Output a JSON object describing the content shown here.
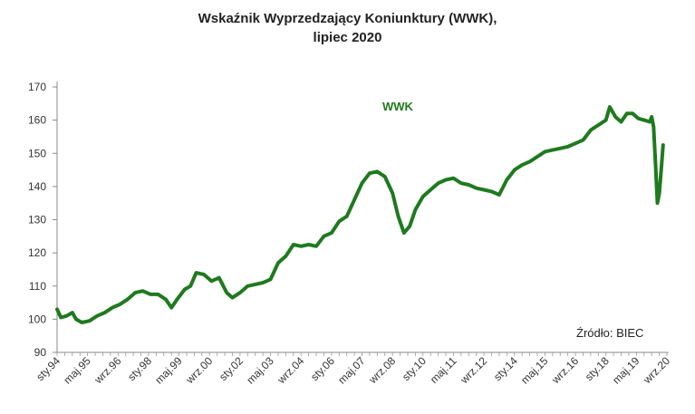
{
  "chart_data": {
    "type": "line",
    "title_line1": "Wskaźnik Wyprzedzający Koniunktury (WWK),",
    "title_line2": "lipiec 2020",
    "series_label": "WWK",
    "source": "Źródło: BIEC",
    "ylim": [
      90,
      170
    ],
    "y_ticks": [
      "90",
      "100",
      "110",
      "120",
      "130",
      "140",
      "150",
      "160",
      "170"
    ],
    "x_range": [
      "1994-01",
      "2020-09"
    ],
    "x_ticks": [
      {
        "label": "sty.94",
        "date": "1994-01"
      },
      {
        "label": "maj.95",
        "date": "1995-05"
      },
      {
        "label": "wrz.96",
        "date": "1996-09"
      },
      {
        "label": "sty.98",
        "date": "1998-01"
      },
      {
        "label": "maj.99",
        "date": "1999-05"
      },
      {
        "label": "wrz.00",
        "date": "2000-09"
      },
      {
        "label": "sty.02",
        "date": "2002-01"
      },
      {
        "label": "maj.03",
        "date": "2003-05"
      },
      {
        "label": "wrz.04",
        "date": "2004-09"
      },
      {
        "label": "sty.06",
        "date": "2006-01"
      },
      {
        "label": "maj.07",
        "date": "2007-05"
      },
      {
        "label": "wrz.08",
        "date": "2008-09"
      },
      {
        "label": "sty.10",
        "date": "2010-01"
      },
      {
        "label": "maj.11",
        "date": "2011-05"
      },
      {
        "label": "wrz.12",
        "date": "2012-09"
      },
      {
        "label": "sty.14",
        "date": "2014-01"
      },
      {
        "label": "maj.15",
        "date": "2015-05"
      },
      {
        "label": "wrz.16",
        "date": "2016-09"
      },
      {
        "label": "sty.18",
        "date": "2018-01"
      },
      {
        "label": "maj.19",
        "date": "2019-05"
      },
      {
        "label": "wrz.20",
        "date": "2020-09"
      }
    ],
    "line_color": "#1e7a1e",
    "grid": false,
    "points": [
      {
        "date": "1994-01",
        "value": 103
      },
      {
        "date": "1994-03",
        "value": 100.5
      },
      {
        "date": "1994-06",
        "value": 101
      },
      {
        "date": "1994-09",
        "value": 102
      },
      {
        "date": "1994-11",
        "value": 100
      },
      {
        "date": "1995-02",
        "value": 99
      },
      {
        "date": "1995-06",
        "value": 99.5
      },
      {
        "date": "1995-10",
        "value": 101
      },
      {
        "date": "1996-02",
        "value": 102
      },
      {
        "date": "1996-06",
        "value": 103.5
      },
      {
        "date": "1996-10",
        "value": 104.5
      },
      {
        "date": "1997-02",
        "value": 106
      },
      {
        "date": "1997-06",
        "value": 108
      },
      {
        "date": "1997-10",
        "value": 108.5
      },
      {
        "date": "1998-02",
        "value": 107.5
      },
      {
        "date": "1998-06",
        "value": 107.5
      },
      {
        "date": "1998-10",
        "value": 106
      },
      {
        "date": "1999-01",
        "value": 103.5
      },
      {
        "date": "1999-04",
        "value": 106
      },
      {
        "date": "1999-08",
        "value": 109
      },
      {
        "date": "1999-11",
        "value": 110
      },
      {
        "date": "2000-02",
        "value": 114
      },
      {
        "date": "2000-06",
        "value": 113.5
      },
      {
        "date": "2000-10",
        "value": 111.5
      },
      {
        "date": "2001-02",
        "value": 112.5
      },
      {
        "date": "2001-06",
        "value": 108
      },
      {
        "date": "2001-09",
        "value": 106.5
      },
      {
        "date": "2002-01",
        "value": 108
      },
      {
        "date": "2002-05",
        "value": 110
      },
      {
        "date": "2002-09",
        "value": 110.5
      },
      {
        "date": "2003-01",
        "value": 111
      },
      {
        "date": "2003-05",
        "value": 112
      },
      {
        "date": "2003-09",
        "value": 117
      },
      {
        "date": "2004-01",
        "value": 119
      },
      {
        "date": "2004-05",
        "value": 122.5
      },
      {
        "date": "2004-09",
        "value": 122
      },
      {
        "date": "2005-01",
        "value": 122.5
      },
      {
        "date": "2005-05",
        "value": 122
      },
      {
        "date": "2005-09",
        "value": 125
      },
      {
        "date": "2006-01",
        "value": 126
      },
      {
        "date": "2006-05",
        "value": 129.5
      },
      {
        "date": "2006-09",
        "value": 131
      },
      {
        "date": "2007-01",
        "value": 136
      },
      {
        "date": "2007-05",
        "value": 141
      },
      {
        "date": "2007-09",
        "value": 144
      },
      {
        "date": "2008-01",
        "value": 144.5
      },
      {
        "date": "2008-05",
        "value": 143
      },
      {
        "date": "2008-09",
        "value": 138
      },
      {
        "date": "2008-12",
        "value": 131
      },
      {
        "date": "2009-03",
        "value": 126
      },
      {
        "date": "2009-06",
        "value": 128
      },
      {
        "date": "2009-09",
        "value": 133
      },
      {
        "date": "2010-01",
        "value": 137
      },
      {
        "date": "2010-05",
        "value": 139
      },
      {
        "date": "2010-09",
        "value": 141
      },
      {
        "date": "2011-01",
        "value": 142
      },
      {
        "date": "2011-05",
        "value": 142.5
      },
      {
        "date": "2011-09",
        "value": 141
      },
      {
        "date": "2012-01",
        "value": 140.5
      },
      {
        "date": "2012-05",
        "value": 139.5
      },
      {
        "date": "2012-09",
        "value": 139
      },
      {
        "date": "2013-01",
        "value": 138.5
      },
      {
        "date": "2013-05",
        "value": 137.5
      },
      {
        "date": "2013-09",
        "value": 142
      },
      {
        "date": "2014-01",
        "value": 145
      },
      {
        "date": "2014-05",
        "value": 146.5
      },
      {
        "date": "2014-09",
        "value": 147.5
      },
      {
        "date": "2015-01",
        "value": 149
      },
      {
        "date": "2015-05",
        "value": 150.5
      },
      {
        "date": "2015-09",
        "value": 151
      },
      {
        "date": "2016-01",
        "value": 151.5
      },
      {
        "date": "2016-05",
        "value": 152
      },
      {
        "date": "2016-09",
        "value": 153
      },
      {
        "date": "2017-01",
        "value": 154
      },
      {
        "date": "2017-05",
        "value": 157
      },
      {
        "date": "2017-09",
        "value": 158.5
      },
      {
        "date": "2018-01",
        "value": 160
      },
      {
        "date": "2018-03",
        "value": 164
      },
      {
        "date": "2018-06",
        "value": 161
      },
      {
        "date": "2018-09",
        "value": 159.5
      },
      {
        "date": "2018-12",
        "value": 162
      },
      {
        "date": "2019-03",
        "value": 162
      },
      {
        "date": "2019-06",
        "value": 160.5
      },
      {
        "date": "2019-09",
        "value": 160
      },
      {
        "date": "2019-12",
        "value": 159.5
      },
      {
        "date": "2020-01",
        "value": 161
      },
      {
        "date": "2020-02",
        "value": 158
      },
      {
        "date": "2020-03",
        "value": 147
      },
      {
        "date": "2020-04",
        "value": 135
      },
      {
        "date": "2020-05",
        "value": 138
      },
      {
        "date": "2020-06",
        "value": 145
      },
      {
        "date": "2020-07",
        "value": 152.5
      }
    ]
  }
}
